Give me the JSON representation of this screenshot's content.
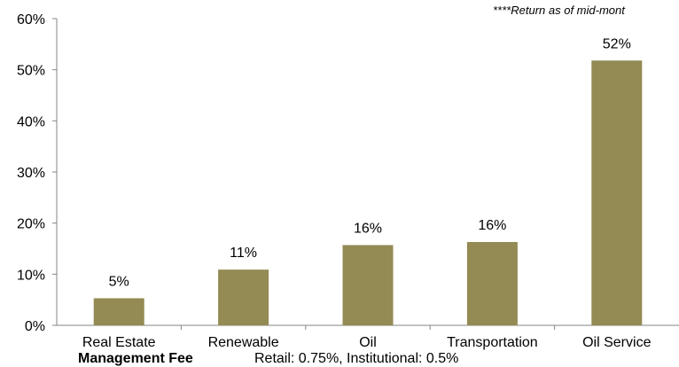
{
  "chart_data": {
    "type": "bar",
    "categories": [
      "Real Estate",
      "Renewable",
      "Oil",
      "Transportation",
      "Oil Service"
    ],
    "values": [
      5.3,
      10.9,
      15.7,
      16.3,
      51.8
    ],
    "data_labels": [
      "5%",
      "11%",
      "16%",
      "16%",
      "52%"
    ],
    "ylim": [
      0,
      60
    ],
    "yticks": [
      0,
      10,
      20,
      30,
      40,
      50,
      60
    ],
    "ytick_labels": [
      "0%",
      "10%",
      "20%",
      "30%",
      "40%",
      "50%",
      "60%"
    ],
    "bar_color": "#948a54",
    "grid": false,
    "annotation": "****Return as of mid-mont"
  },
  "footer": {
    "label": "Management Fee",
    "value": "Retail: 0.75%, Institutional: 0.5%"
  }
}
